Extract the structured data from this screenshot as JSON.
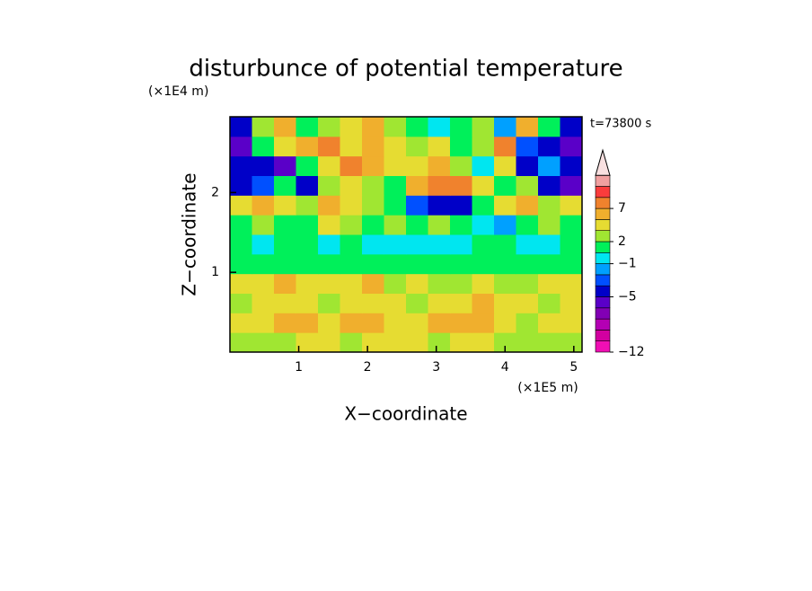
{
  "chart_data": {
    "type": "contour",
    "title": "disturbunce of potential temperature",
    "x_label": "X−coordinate",
    "y_label": "Z−coordinate",
    "x_unit": "(×1E5 m)",
    "y_unit": "(×1E4 m)",
    "time_label": "t=73800 s",
    "xlim": [
      0,
      5.12
    ],
    "ylim": [
      0,
      2.95
    ],
    "xticks": [
      1,
      2,
      3,
      4,
      5
    ],
    "yticks": [
      1,
      2
    ],
    "z": [
      [
        2.5,
        2.5,
        2.5,
        4,
        4,
        2.5,
        4,
        4,
        4,
        2.5,
        4,
        4,
        2.5,
        2.5,
        2.5,
        2.5
      ],
      [
        4,
        4,
        6,
        6,
        4,
        6,
        6,
        4,
        4,
        6,
        6,
        6,
        4,
        2.5,
        4,
        4
      ],
      [
        2.5,
        4,
        4,
        4,
        2.5,
        4,
        4,
        4,
        2.5,
        4,
        4,
        6,
        4,
        4,
        2.5,
        4
      ],
      [
        4,
        4,
        6,
        4,
        4,
        4,
        6,
        2.5,
        4,
        2.5,
        2.5,
        4,
        2.5,
        2.5,
        4,
        4
      ],
      [
        1,
        1,
        1,
        1,
        1,
        1,
        1,
        1,
        1,
        1,
        1,
        1,
        1,
        1,
        1,
        1
      ],
      [
        1,
        -0.5,
        1,
        1,
        -0.5,
        1,
        -0.5,
        -0.5,
        -0.5,
        -0.5,
        -0.5,
        1,
        1,
        -0.5,
        -0.5,
        1
      ],
      [
        1,
        2.5,
        1,
        1,
        4,
        2.5,
        1,
        2.5,
        1,
        2.5,
        1,
        -0.5,
        -1.5,
        1,
        2.5,
        1
      ],
      [
        4,
        6,
        4,
        2.5,
        6,
        4,
        2.5,
        1,
        -2.5,
        -4,
        -4,
        1,
        4,
        6,
        2.5,
        4
      ],
      [
        -4,
        -2.5,
        1,
        -4,
        2.5,
        4,
        2.5,
        1,
        6,
        8,
        8,
        4,
        1,
        2.5,
        -4,
        -6
      ],
      [
        -4,
        -4,
        -6,
        1,
        4,
        8,
        6,
        4,
        4,
        6,
        2.5,
        -0.5,
        4,
        -4,
        -1.5,
        -4
      ],
      [
        -6,
        1,
        4,
        6,
        8,
        4,
        6,
        4,
        2.5,
        4,
        1,
        2.5,
        8,
        -2.5,
        -4,
        -6
      ],
      [
        -4,
        2.5,
        6,
        1,
        2.5,
        4,
        6,
        2.5,
        1,
        -0.5,
        1,
        2.5,
        -1.5,
        6,
        1,
        -4
      ]
    ],
    "colorbar": {
      "levels": [
        -12,
        -10,
        -9,
        -8,
        -7,
        -5,
        -3,
        -2,
        -1,
        0,
        2,
        3,
        5,
        7,
        9,
        11,
        13
      ],
      "colors": [
        "#f00fb4",
        "#d200a0",
        "#b400b4",
        "#8200b4",
        "#5a00c8",
        "#0000c8",
        "#0050ff",
        "#00a0ff",
        "#00e6f0",
        "#00f05a",
        "#a0e632",
        "#e6dc32",
        "#f0af2d",
        "#f0822d",
        "#fa3c3c",
        "#f0a0a0"
      ],
      "over_color": "#f8e0e0",
      "ticks": [
        {
          "value": -12,
          "label": "−12"
        },
        {
          "value": -5,
          "label": "−5"
        },
        {
          "value": -1,
          "label": "−1"
        },
        2,
        7
      ]
    }
  }
}
